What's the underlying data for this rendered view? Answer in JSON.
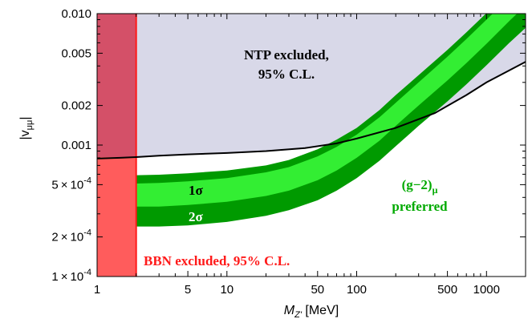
{
  "chart_data": {
    "type": "area",
    "title": "",
    "xlabel": {
      "main": "M",
      "sub": "Z'",
      "unit": " [MeV]"
    },
    "ylabel": {
      "main": "|v",
      "sub": "μμ",
      "end": "|"
    },
    "xscale": "log",
    "yscale": "log",
    "xlim": [
      1,
      2000
    ],
    "ylim": [
      0.0001,
      0.01
    ],
    "grid": false,
    "legend": "none",
    "x_ticks": [
      {
        "value": 1,
        "label": "1"
      },
      {
        "value": 5,
        "label": "5"
      },
      {
        "value": 10,
        "label": "10"
      },
      {
        "value": 50,
        "label": "50"
      },
      {
        "value": 100,
        "label": "100"
      },
      {
        "value": 500,
        "label": "500"
      },
      {
        "value": 1000,
        "label": "1000"
      }
    ],
    "y_ticks": [
      {
        "value": 0.0001,
        "mant": "1",
        "exp": "-4"
      },
      {
        "value": 0.0002,
        "mant": "2",
        "exp": "-4"
      },
      {
        "value": 0.0005,
        "mant": "5",
        "exp": "-4"
      },
      {
        "value": 0.001,
        "text": "0.001"
      },
      {
        "value": 0.002,
        "text": "0.002"
      },
      {
        "value": 0.005,
        "text": "0.005"
      },
      {
        "value": 0.01,
        "text": "0.010"
      }
    ],
    "ntp_bound": {
      "x": [
        1,
        1.5,
        2,
        3,
        5,
        10,
        20,
        40,
        70,
        100,
        200,
        400,
        700,
        1000,
        2000
      ],
      "y": [
        0.00079,
        0.0008,
        0.00081,
        0.00083,
        0.00085,
        0.00087,
        0.0009,
        0.00095,
        0.00103,
        0.00112,
        0.00135,
        0.00175,
        0.0024,
        0.003,
        0.0043
      ]
    },
    "bbn_excluded_below_x": 2,
    "g2_band": {
      "x": [
        1,
        2,
        3,
        5,
        10,
        20,
        30,
        50,
        70,
        100,
        150,
        200,
        300,
        500,
        700,
        1000,
        1500,
        2000
      ],
      "two_sigma_upper": [
        0.00058,
        0.00059,
        0.000595,
        0.00061,
        0.00064,
        0.0007,
        0.00077,
        0.00093,
        0.0011,
        0.00135,
        0.00185,
        0.0024,
        0.0034,
        0.0053,
        0.0072,
        0.0101,
        0.015,
        0.0195
      ],
      "one_sigma_upper": [
        0.0005,
        0.00051,
        0.000515,
        0.00053,
        0.00056,
        0.00062,
        0.00068,
        0.00082,
        0.00097,
        0.0012,
        0.00163,
        0.0021,
        0.003,
        0.0047,
        0.0064,
        0.009,
        0.0133,
        0.0175
      ],
      "one_sigma_lower": [
        0.00033,
        0.00034,
        0.00034,
        0.00035,
        0.00037,
        0.00041,
        0.00045,
        0.00054,
        0.00064,
        0.0008,
        0.00108,
        0.0014,
        0.002,
        0.0031,
        0.0042,
        0.0059,
        0.0088,
        0.0115
      ],
      "two_sigma_lower": [
        0.00023,
        0.00024,
        0.00024,
        0.000245,
        0.00026,
        0.00029,
        0.00032,
        0.00038,
        0.00045,
        0.00056,
        0.00076,
        0.00098,
        0.0014,
        0.00215,
        0.0029,
        0.00405,
        0.006,
        0.0078
      ]
    },
    "colors": {
      "ntp_fill": "#d8d8e8",
      "ntp_line": "#000000",
      "bbn_fill": "#ff5c5c",
      "bbn_overlap": "#d45068",
      "bbn_edge": "#ff1a1a",
      "two_sigma": "#009a00",
      "one_sigma": "#33ee33",
      "bbn_text": "#ff1a1a",
      "g2_text": "#00aa00",
      "ntp_text": "#000000"
    },
    "annotations": {
      "ntp_line1": "NTP excluded,",
      "ntp_line2": "95% C.L.",
      "bbn": "BBN excluded, 95% C.L.",
      "one_sigma": "1σ",
      "two_sigma": "2σ",
      "g2_line1": "(g−2)",
      "g2_sub": "μ",
      "g2_line2": "preferred"
    }
  }
}
